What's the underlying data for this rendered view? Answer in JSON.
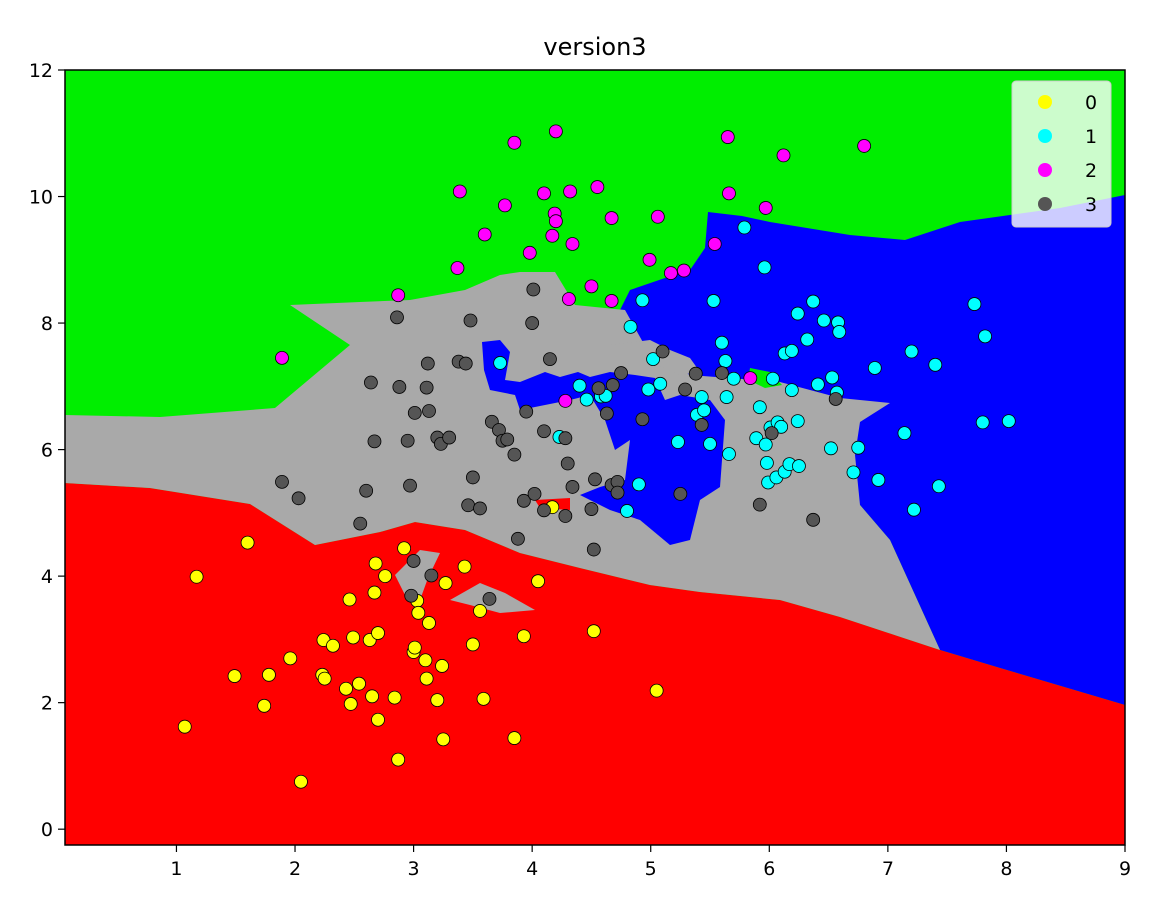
{
  "chart_data": {
    "type": "scatter",
    "title": "version3",
    "xlabel": "",
    "ylabel": "",
    "xlim": [
      0.06,
      9.0
    ],
    "ylim": [
      -0.25,
      12.0
    ],
    "x_ticks": [
      "1",
      "2",
      "3",
      "4",
      "5",
      "6",
      "7",
      "8",
      "9"
    ],
    "y_ticks": [
      "0",
      "2",
      "4",
      "6",
      "8",
      "10",
      "12"
    ],
    "grid": false,
    "legend_position": "top-right",
    "background": "decision regions: red (class 0), blue (class 1), green (class 2), gray (class 3)",
    "region_colors": {
      "0": "#ff0000",
      "1": "#0000ff",
      "2": "#00ee00",
      "3": "#a9a9a9"
    },
    "series": [
      {
        "name": "0",
        "color": "#ffff00",
        "points": [
          [
            1.07,
            1.62
          ],
          [
            1.17,
            3.99
          ],
          [
            1.49,
            2.42
          ],
          [
            1.6,
            4.53
          ],
          [
            1.74,
            1.95
          ],
          [
            1.78,
            2.44
          ],
          [
            1.96,
            2.7
          ],
          [
            2.05,
            0.75
          ],
          [
            2.23,
            2.44
          ],
          [
            2.24,
            2.99
          ],
          [
            2.25,
            2.38
          ],
          [
            2.32,
            2.9
          ],
          [
            2.43,
            2.22
          ],
          [
            2.46,
            3.63
          ],
          [
            2.47,
            1.98
          ],
          [
            2.49,
            3.03
          ],
          [
            2.54,
            2.3
          ],
          [
            2.63,
            2.99
          ],
          [
            2.65,
            2.1
          ],
          [
            2.67,
            3.74
          ],
          [
            2.68,
            4.2
          ],
          [
            2.7,
            3.1
          ],
          [
            2.7,
            1.73
          ],
          [
            2.76,
            4.0
          ],
          [
            2.84,
            2.08
          ],
          [
            2.87,
            1.1
          ],
          [
            2.92,
            4.44
          ],
          [
            3.0,
            2.8
          ],
          [
            3.01,
            2.87
          ],
          [
            3.03,
            3.61
          ],
          [
            3.04,
            3.42
          ],
          [
            3.1,
            2.67
          ],
          [
            3.11,
            2.38
          ],
          [
            3.13,
            3.26
          ],
          [
            3.2,
            2.04
          ],
          [
            3.24,
            2.58
          ],
          [
            3.25,
            1.42
          ],
          [
            3.27,
            3.89
          ],
          [
            3.43,
            4.15
          ],
          [
            3.5,
            2.92
          ],
          [
            3.56,
            3.45
          ],
          [
            3.59,
            2.06
          ],
          [
            3.85,
            1.44
          ],
          [
            3.93,
            3.05
          ],
          [
            4.05,
            3.92
          ],
          [
            4.17,
            5.09
          ],
          [
            4.52,
            3.13
          ],
          [
            5.05,
            2.19
          ]
        ]
      },
      {
        "name": "1",
        "color": "#00ffff",
        "points": [
          [
            3.73,
            7.37
          ],
          [
            4.23,
            6.2
          ],
          [
            4.4,
            7.01
          ],
          [
            4.46,
            6.79
          ],
          [
            4.58,
            6.84
          ],
          [
            4.62,
            6.85
          ],
          [
            4.8,
            5.03
          ],
          [
            4.83,
            7.94
          ],
          [
            4.9,
            5.45
          ],
          [
            4.93,
            8.36
          ],
          [
            4.98,
            6.95
          ],
          [
            5.02,
            7.43
          ],
          [
            5.08,
            7.04
          ],
          [
            5.23,
            6.12
          ],
          [
            5.39,
            6.55
          ],
          [
            5.43,
            6.83
          ],
          [
            5.45,
            6.62
          ],
          [
            5.5,
            6.09
          ],
          [
            5.53,
            8.35
          ],
          [
            5.6,
            7.69
          ],
          [
            5.63,
            7.4
          ],
          [
            5.64,
            6.83
          ],
          [
            5.66,
            5.93
          ],
          [
            5.7,
            7.12
          ],
          [
            5.79,
            9.51
          ],
          [
            5.89,
            6.18
          ],
          [
            5.92,
            6.67
          ],
          [
            5.96,
            8.88
          ],
          [
            5.97,
            6.08
          ],
          [
            5.98,
            5.79
          ],
          [
            5.99,
            5.48
          ],
          [
            6.01,
            6.35
          ],
          [
            6.03,
            7.12
          ],
          [
            6.06,
            5.56
          ],
          [
            6.07,
            6.43
          ],
          [
            6.1,
            6.36
          ],
          [
            6.13,
            5.65
          ],
          [
            6.13,
            7.52
          ],
          [
            6.17,
            5.77
          ],
          [
            6.19,
            6.94
          ],
          [
            6.19,
            7.56
          ],
          [
            6.24,
            6.45
          ],
          [
            6.25,
            5.74
          ],
          [
            6.24,
            8.15
          ],
          [
            6.32,
            7.74
          ],
          [
            6.37,
            8.34
          ],
          [
            6.41,
            7.03
          ],
          [
            6.46,
            8.04
          ],
          [
            6.52,
            6.02
          ],
          [
            6.53,
            7.14
          ],
          [
            6.57,
            6.9
          ],
          [
            6.58,
            8.01
          ],
          [
            6.59,
            7.86
          ],
          [
            6.71,
            5.64
          ],
          [
            6.75,
            6.03
          ],
          [
            6.89,
            7.29
          ],
          [
            6.92,
            5.52
          ],
          [
            7.14,
            6.26
          ],
          [
            7.2,
            7.55
          ],
          [
            7.22,
            5.05
          ],
          [
            7.4,
            7.34
          ],
          [
            7.43,
            5.42
          ],
          [
            7.73,
            8.3
          ],
          [
            7.8,
            6.43
          ],
          [
            7.82,
            7.79
          ],
          [
            8.02,
            6.45
          ]
        ]
      },
      {
        "name": "2",
        "color": "#ff00ff",
        "points": [
          [
            1.89,
            7.45
          ],
          [
            2.87,
            8.44
          ],
          [
            3.37,
            8.87
          ],
          [
            3.39,
            10.08
          ],
          [
            3.6,
            9.4
          ],
          [
            3.77,
            9.86
          ],
          [
            3.85,
            10.85
          ],
          [
            3.98,
            9.11
          ],
          [
            4.1,
            10.05
          ],
          [
            4.17,
            9.38
          ],
          [
            4.19,
            9.73
          ],
          [
            4.2,
            11.03
          ],
          [
            4.2,
            9.61
          ],
          [
            4.28,
            6.77
          ],
          [
            4.31,
            8.38
          ],
          [
            4.32,
            10.08
          ],
          [
            4.34,
            9.25
          ],
          [
            4.5,
            8.58
          ],
          [
            4.55,
            10.15
          ],
          [
            4.67,
            9.66
          ],
          [
            4.67,
            8.35
          ],
          [
            4.99,
            9.0
          ],
          [
            5.06,
            9.68
          ],
          [
            5.17,
            8.79
          ],
          [
            5.28,
            8.83
          ],
          [
            5.54,
            9.25
          ],
          [
            5.65,
            10.94
          ],
          [
            5.66,
            10.05
          ],
          [
            5.84,
            7.13
          ],
          [
            5.97,
            9.82
          ],
          [
            6.12,
            10.65
          ],
          [
            6.8,
            10.8
          ]
        ]
      },
      {
        "name": "3",
        "color": "#555555",
        "points": [
          [
            1.89,
            5.49
          ],
          [
            2.03,
            5.23
          ],
          [
            2.55,
            4.83
          ],
          [
            2.6,
            5.35
          ],
          [
            2.64,
            7.06
          ],
          [
            2.67,
            6.13
          ],
          [
            2.86,
            8.09
          ],
          [
            2.88,
            6.99
          ],
          [
            2.95,
            6.14
          ],
          [
            2.97,
            5.43
          ],
          [
            2.98,
            3.69
          ],
          [
            3.0,
            4.24
          ],
          [
            3.01,
            6.58
          ],
          [
            3.11,
            6.98
          ],
          [
            3.12,
            7.36
          ],
          [
            3.13,
            6.61
          ],
          [
            3.15,
            4.01
          ],
          [
            3.2,
            6.19
          ],
          [
            3.23,
            6.09
          ],
          [
            3.3,
            6.19
          ],
          [
            3.38,
            7.39
          ],
          [
            3.44,
            7.36
          ],
          [
            3.46,
            5.12
          ],
          [
            3.48,
            8.04
          ],
          [
            3.5,
            5.56
          ],
          [
            3.56,
            5.07
          ],
          [
            3.64,
            3.64
          ],
          [
            3.66,
            6.44
          ],
          [
            3.72,
            6.31
          ],
          [
            3.75,
            6.14
          ],
          [
            3.79,
            6.16
          ],
          [
            3.85,
            5.92
          ],
          [
            3.88,
            4.59
          ],
          [
            3.93,
            5.19
          ],
          [
            3.95,
            6.6
          ],
          [
            4.0,
            8.0
          ],
          [
            4.01,
            8.53
          ],
          [
            4.02,
            5.3
          ],
          [
            4.1,
            6.29
          ],
          [
            4.1,
            5.04
          ],
          [
            4.15,
            7.43
          ],
          [
            4.28,
            6.18
          ],
          [
            4.28,
            4.95
          ],
          [
            4.3,
            5.78
          ],
          [
            4.34,
            5.41
          ],
          [
            4.5,
            5.06
          ],
          [
            4.52,
            4.42
          ],
          [
            4.53,
            5.53
          ],
          [
            4.56,
            6.97
          ],
          [
            4.63,
            6.57
          ],
          [
            4.67,
            5.44
          ],
          [
            4.68,
            7.02
          ],
          [
            4.72,
            5.49
          ],
          [
            4.72,
            5.32
          ],
          [
            4.75,
            7.21
          ],
          [
            4.93,
            6.48
          ],
          [
            5.1,
            7.55
          ],
          [
            5.25,
            5.3
          ],
          [
            5.29,
            6.95
          ],
          [
            5.38,
            7.2
          ],
          [
            5.43,
            6.39
          ],
          [
            5.6,
            7.21
          ],
          [
            5.92,
            5.13
          ],
          [
            6.02,
            6.26
          ],
          [
            6.37,
            4.89
          ],
          [
            6.56,
            6.8
          ]
        ]
      }
    ]
  }
}
